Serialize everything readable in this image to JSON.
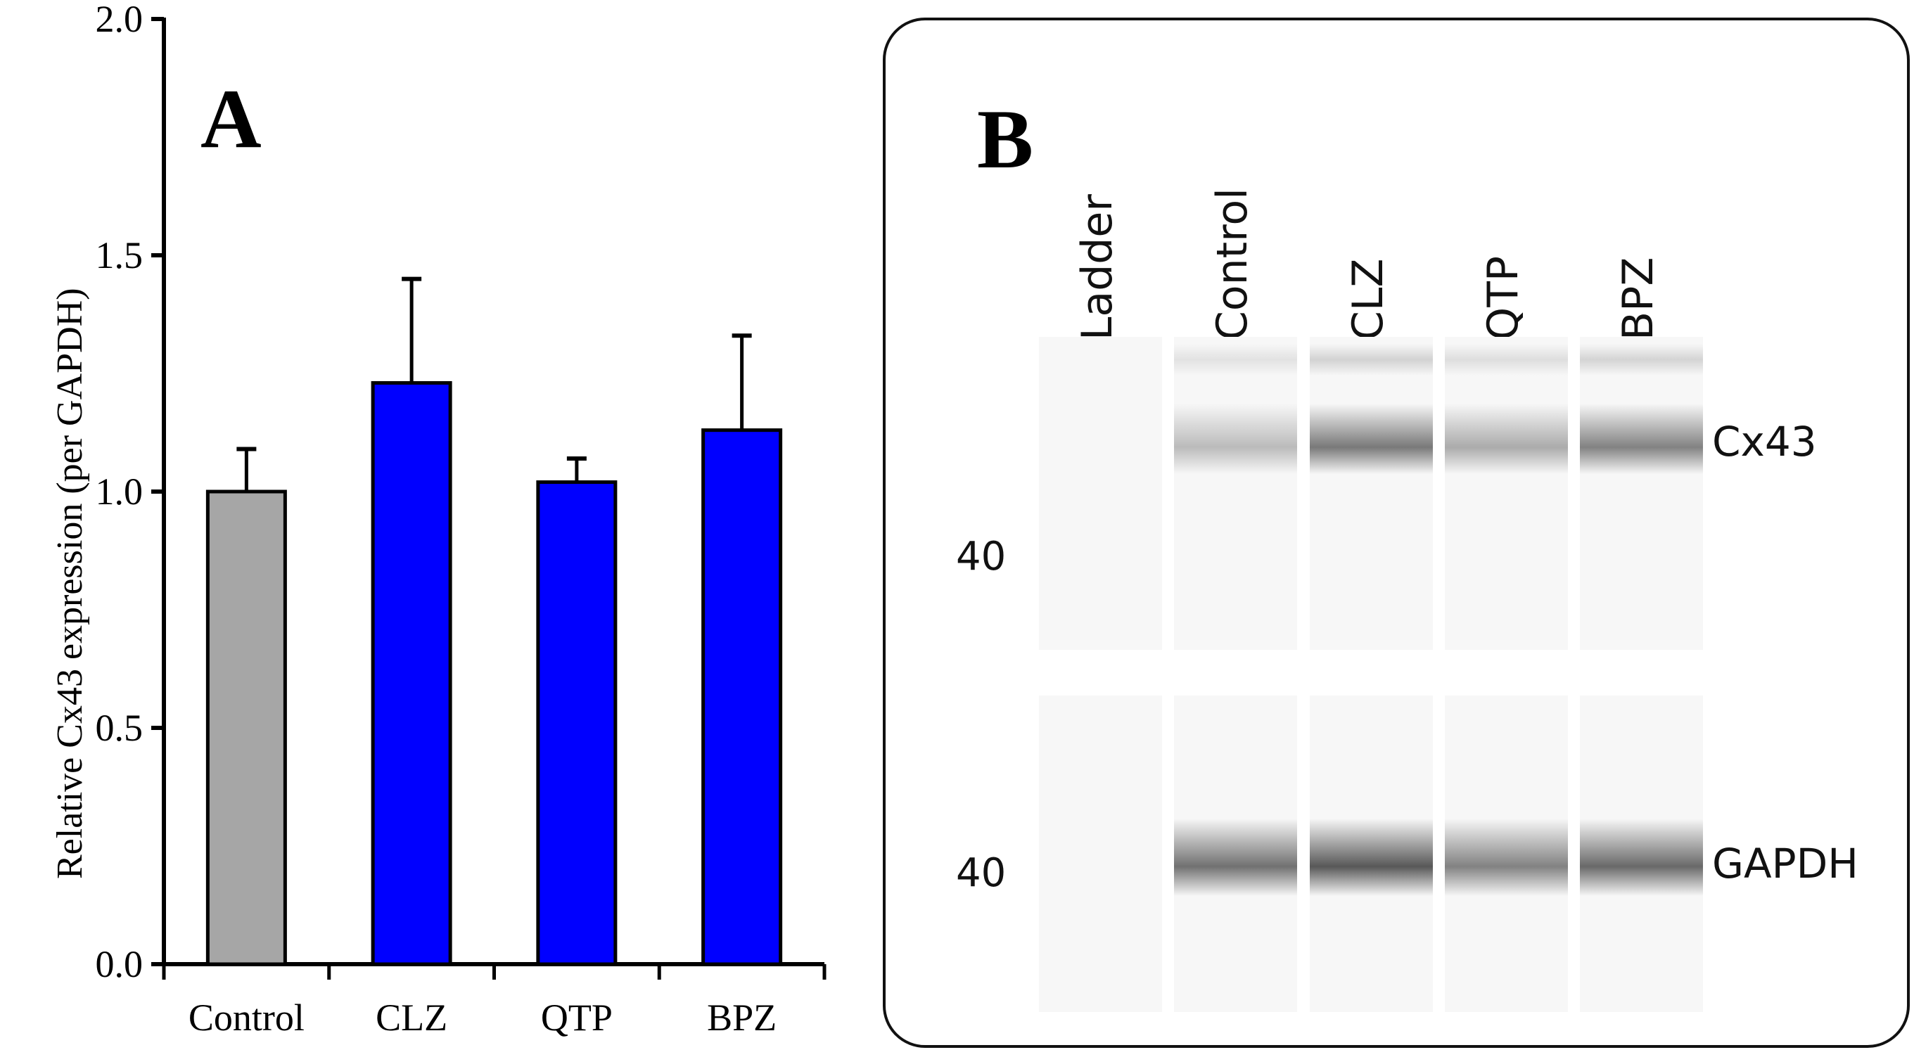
{
  "chart_data": {
    "type": "bar",
    "panel_label": "A",
    "title": "",
    "categories": [
      "Control",
      "CLZ",
      "QTP",
      "BPZ"
    ],
    "values": [
      1.0,
      1.23,
      1.02,
      1.13
    ],
    "error_bars_upper": [
      0.09,
      0.22,
      0.05,
      0.2
    ],
    "bar_colors": [
      "#a6a6a6",
      "#0000ff",
      "#0000ff",
      "#0000ff"
    ],
    "xlabel": "",
    "ylabel": "Relative Cx43 expression (per GAPDH)",
    "ylim": [
      0.0,
      2.0
    ],
    "yticks": [
      "0.0",
      "0.5",
      "1.0",
      "1.5",
      "2.0"
    ],
    "grid": false,
    "legend": null
  },
  "panelA": {
    "label": "A",
    "ylabel": "Relative Cx43 expression (per GAPDH)",
    "yticks": [
      "0.0",
      "0.5",
      "1.0",
      "1.5",
      "2.0"
    ],
    "categories": [
      "Control",
      "CLZ",
      "QTP",
      "BPZ"
    ]
  },
  "panelB": {
    "label": "B",
    "lanes": [
      "Ladder",
      "Control",
      "CLZ",
      "QTP",
      "BPZ"
    ],
    "blots": [
      {
        "protein": "Cx43",
        "marker": "40",
        "band_intensity": [
          0,
          0.35,
          0.75,
          0.45,
          0.7
        ]
      },
      {
        "protein": "GAPDH",
        "marker": "40",
        "band_intensity": [
          0,
          0.8,
          0.95,
          0.7,
          0.85
        ]
      }
    ]
  }
}
